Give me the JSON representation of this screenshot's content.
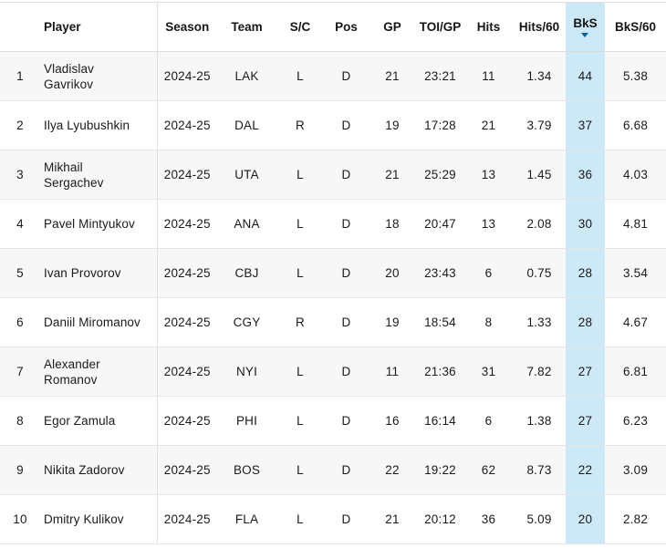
{
  "colors": {
    "sorted_column_bg": "#cde8f7",
    "sort_caret": "#0f608f",
    "row_stripe": "#f7f7f7",
    "grid_line": "#e1e1e1",
    "text": "#1a1a1a"
  },
  "table": {
    "sort": {
      "column": "bks",
      "direction": "desc"
    },
    "columns": [
      {
        "key": "rank",
        "label": ""
      },
      {
        "key": "player",
        "label": "Player"
      },
      {
        "key": "season",
        "label": "Season"
      },
      {
        "key": "team",
        "label": "Team"
      },
      {
        "key": "sc",
        "label": "S/C"
      },
      {
        "key": "pos",
        "label": "Pos"
      },
      {
        "key": "gp",
        "label": "GP"
      },
      {
        "key": "toigp",
        "label": "TOI/GP"
      },
      {
        "key": "hits",
        "label": "Hits"
      },
      {
        "key": "hits60",
        "label": "Hits/60"
      },
      {
        "key": "bks",
        "label": "BkS",
        "sorted": "desc"
      },
      {
        "key": "bks60",
        "label": "BkS/60"
      }
    ],
    "rows": [
      {
        "rank": "1",
        "player": "Vladislav Gavrikov",
        "season": "2024-25",
        "team": "LAK",
        "sc": "L",
        "pos": "D",
        "gp": "21",
        "toigp": "23:21",
        "hits": "11",
        "hits60": "1.34",
        "bks": "44",
        "bks60": "5.38"
      },
      {
        "rank": "2",
        "player": "Ilya Lyubushkin",
        "season": "2024-25",
        "team": "DAL",
        "sc": "R",
        "pos": "D",
        "gp": "19",
        "toigp": "17:28",
        "hits": "21",
        "hits60": "3.79",
        "bks": "37",
        "bks60": "6.68"
      },
      {
        "rank": "3",
        "player": "Mikhail Sergachev",
        "season": "2024-25",
        "team": "UTA",
        "sc": "L",
        "pos": "D",
        "gp": "21",
        "toigp": "25:29",
        "hits": "13",
        "hits60": "1.45",
        "bks": "36",
        "bks60": "4.03"
      },
      {
        "rank": "4",
        "player": "Pavel Mintyukov",
        "season": "2024-25",
        "team": "ANA",
        "sc": "L",
        "pos": "D",
        "gp": "18",
        "toigp": "20:47",
        "hits": "13",
        "hits60": "2.08",
        "bks": "30",
        "bks60": "4.81"
      },
      {
        "rank": "5",
        "player": "Ivan Provorov",
        "season": "2024-25",
        "team": "CBJ",
        "sc": "L",
        "pos": "D",
        "gp": "20",
        "toigp": "23:43",
        "hits": "6",
        "hits60": "0.75",
        "bks": "28",
        "bks60": "3.54"
      },
      {
        "rank": "6",
        "player": "Daniil Miromanov",
        "season": "2024-25",
        "team": "CGY",
        "sc": "R",
        "pos": "D",
        "gp": "19",
        "toigp": "18:54",
        "hits": "8",
        "hits60": "1.33",
        "bks": "28",
        "bks60": "4.67"
      },
      {
        "rank": "7",
        "player": "Alexander Romanov",
        "season": "2024-25",
        "team": "NYI",
        "sc": "L",
        "pos": "D",
        "gp": "11",
        "toigp": "21:36",
        "hits": "31",
        "hits60": "7.82",
        "bks": "27",
        "bks60": "6.81"
      },
      {
        "rank": "8",
        "player": "Egor Zamula",
        "season": "2024-25",
        "team": "PHI",
        "sc": "L",
        "pos": "D",
        "gp": "16",
        "toigp": "16:14",
        "hits": "6",
        "hits60": "1.38",
        "bks": "27",
        "bks60": "6.23"
      },
      {
        "rank": "9",
        "player": "Nikita Zadorov",
        "season": "2024-25",
        "team": "BOS",
        "sc": "L",
        "pos": "D",
        "gp": "22",
        "toigp": "19:22",
        "hits": "62",
        "hits60": "8.73",
        "bks": "22",
        "bks60": "3.09"
      },
      {
        "rank": "10",
        "player": "Dmitry Kulikov",
        "season": "2024-25",
        "team": "FLA",
        "sc": "L",
        "pos": "D",
        "gp": "21",
        "toigp": "20:12",
        "hits": "36",
        "hits60": "5.09",
        "bks": "20",
        "bks60": "2.82"
      }
    ]
  }
}
